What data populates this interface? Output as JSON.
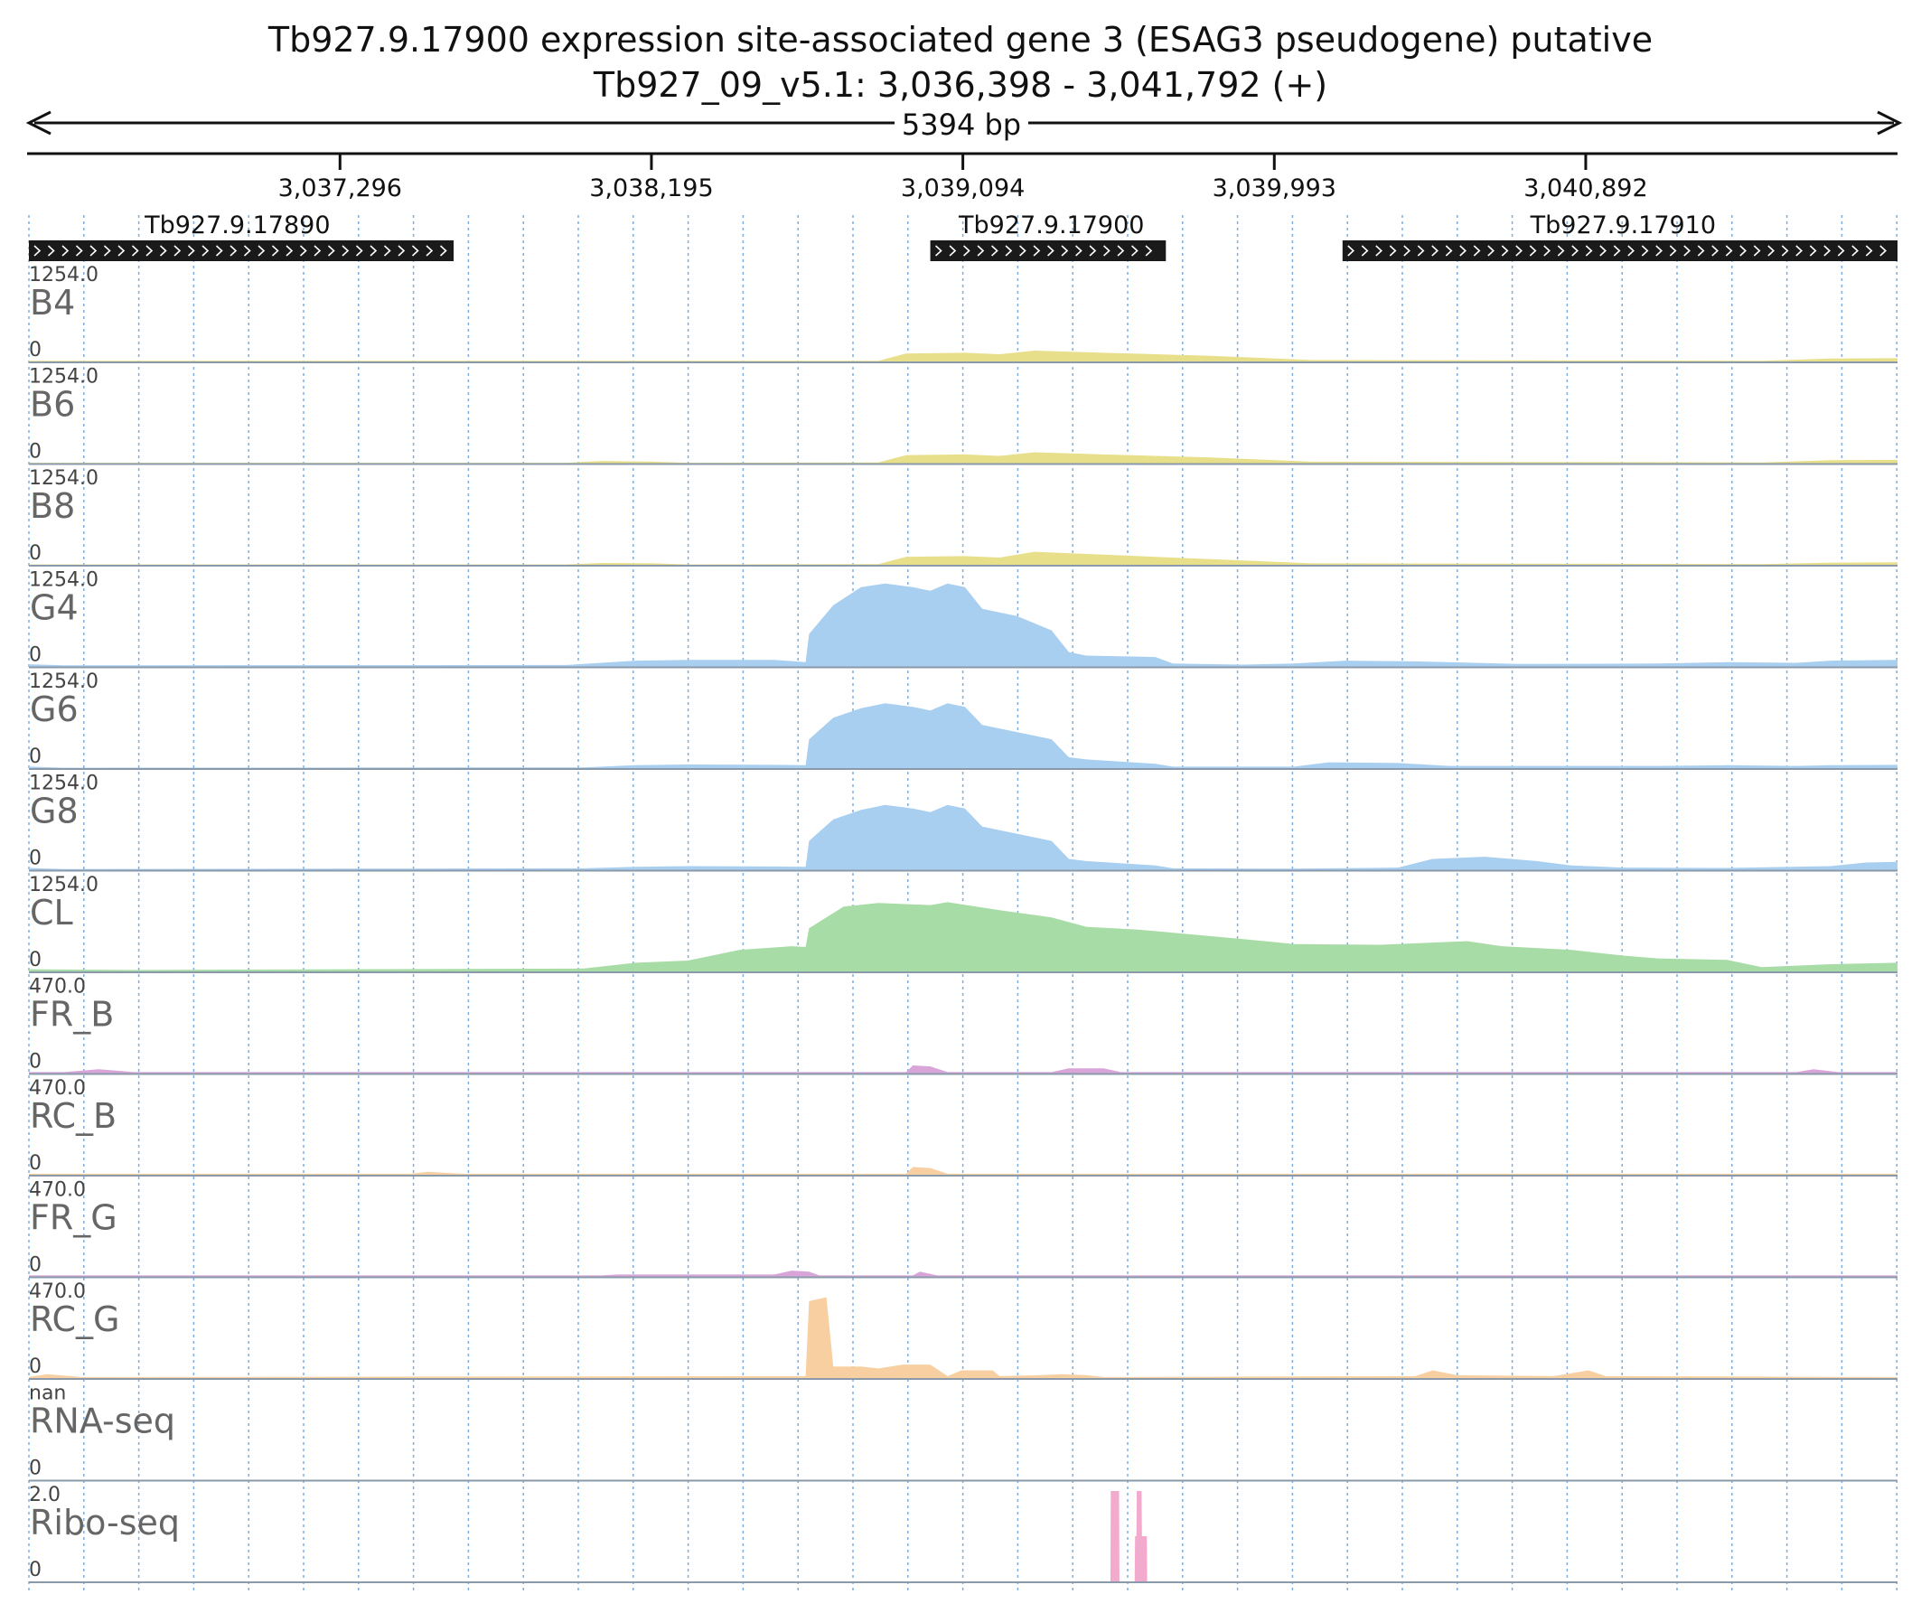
{
  "header": {
    "title": "Tb927.9.17900  expression site-associated gene 3 (ESAG3  pseudogene)  putative",
    "locus": "Tb927_09_v5.1: 3,036,398 - 3,041,792 (+)",
    "span_label": "5394 bp"
  },
  "chart_data": {
    "type": "area",
    "region": {
      "start": 3036398,
      "end": 3041792
    },
    "ticks": [
      {
        "pos": 3037296,
        "label": "3,037,296"
      },
      {
        "pos": 3038195,
        "label": "3,038,195"
      },
      {
        "pos": 3039094,
        "label": "3,039,094"
      },
      {
        "pos": 3039993,
        "label": "3,039,993"
      },
      {
        "pos": 3040892,
        "label": "3,040,892"
      }
    ],
    "genes": [
      {
        "name": "Tb927.9.17890",
        "start": 3036398,
        "end": 3037624,
        "strand": "+",
        "label_pos": 3037000
      },
      {
        "name": "Tb927.9.17900",
        "start": 3039000,
        "end": 3039680,
        "strand": "+",
        "label_pos": 3039350
      },
      {
        "name": "Tb927.9.17910",
        "start": 3040190,
        "end": 3041792,
        "strand": "+",
        "label_pos": 3041000
      }
    ],
    "tracks": [
      {
        "name": "B4",
        "max_label": "1254.0",
        "min_label": "0",
        "ymax": 1254,
        "color": "#e8df8a",
        "points": [
          [
            3036398,
            10
          ],
          [
            3038850,
            10
          ],
          [
            3038930,
            110
          ],
          [
            3039100,
            120
          ],
          [
            3039200,
            100
          ],
          [
            3039300,
            150
          ],
          [
            3039500,
            120
          ],
          [
            3039800,
            80
          ],
          [
            3040100,
            20
          ],
          [
            3041400,
            10
          ],
          [
            3041600,
            40
          ],
          [
            3041792,
            45
          ]
        ]
      },
      {
        "name": "B6",
        "max_label": "1254.0",
        "min_label": "0",
        "ymax": 1254,
        "color": "#e8df8a",
        "points": [
          [
            3036398,
            5
          ],
          [
            3037950,
            5
          ],
          [
            3038050,
            30
          ],
          [
            3038200,
            20
          ],
          [
            3038300,
            5
          ],
          [
            3038850,
            10
          ],
          [
            3038930,
            110
          ],
          [
            3039100,
            120
          ],
          [
            3039200,
            100
          ],
          [
            3039300,
            150
          ],
          [
            3039500,
            120
          ],
          [
            3039800,
            80
          ],
          [
            3040100,
            20
          ],
          [
            3041400,
            10
          ],
          [
            3041600,
            40
          ],
          [
            3041792,
            45
          ]
        ]
      },
      {
        "name": "B8",
        "max_label": "1254.0",
        "min_label": "0",
        "ymax": 1254,
        "color": "#e8df8a",
        "points": [
          [
            3036398,
            5
          ],
          [
            3037950,
            5
          ],
          [
            3038050,
            25
          ],
          [
            3038200,
            20
          ],
          [
            3038300,
            5
          ],
          [
            3038850,
            10
          ],
          [
            3038930,
            110
          ],
          [
            3039100,
            120
          ],
          [
            3039200,
            100
          ],
          [
            3039300,
            180
          ],
          [
            3039500,
            140
          ],
          [
            3039800,
            80
          ],
          [
            3040100,
            20
          ],
          [
            3041400,
            10
          ],
          [
            3041600,
            30
          ],
          [
            3041792,
            35
          ]
        ]
      },
      {
        "name": "G4",
        "max_label": "1254.0",
        "min_label": "0",
        "ymax": 1254,
        "color": "#a9cff0",
        "points": [
          [
            3036398,
            30
          ],
          [
            3036500,
            15
          ],
          [
            3037950,
            20
          ],
          [
            3038150,
            80
          ],
          [
            3038300,
            90
          ],
          [
            3038550,
            90
          ],
          [
            3038640,
            60
          ],
          [
            3038650,
            450
          ],
          [
            3038720,
            850
          ],
          [
            3038800,
            1100
          ],
          [
            3038870,
            1150
          ],
          [
            3038950,
            1100
          ],
          [
            3039000,
            1050
          ],
          [
            3039050,
            1150
          ],
          [
            3039100,
            1100
          ],
          [
            3039150,
            800
          ],
          [
            3039250,
            700
          ],
          [
            3039350,
            500
          ],
          [
            3039400,
            200
          ],
          [
            3039450,
            150
          ],
          [
            3039650,
            130
          ],
          [
            3039700,
            40
          ],
          [
            3039900,
            25
          ],
          [
            3040050,
            40
          ],
          [
            3040200,
            80
          ],
          [
            3040400,
            70
          ],
          [
            3040700,
            35
          ],
          [
            3041100,
            40
          ],
          [
            3041300,
            60
          ],
          [
            3041500,
            50
          ],
          [
            3041600,
            80
          ],
          [
            3041792,
            90
          ]
        ]
      },
      {
        "name": "G6",
        "max_label": "1254.0",
        "min_label": "0",
        "ymax": 1254,
        "color": "#a9cff0",
        "points": [
          [
            3036398,
            20
          ],
          [
            3036500,
            5
          ],
          [
            3038000,
            10
          ],
          [
            3038150,
            40
          ],
          [
            3038300,
            50
          ],
          [
            3038550,
            45
          ],
          [
            3038640,
            40
          ],
          [
            3038650,
            400
          ],
          [
            3038720,
            700
          ],
          [
            3038800,
            830
          ],
          [
            3038870,
            900
          ],
          [
            3038950,
            850
          ],
          [
            3039000,
            800
          ],
          [
            3039050,
            900
          ],
          [
            3039100,
            850
          ],
          [
            3039150,
            600
          ],
          [
            3039250,
            500
          ],
          [
            3039350,
            400
          ],
          [
            3039400,
            150
          ],
          [
            3039450,
            120
          ],
          [
            3039650,
            60
          ],
          [
            3039700,
            20
          ],
          [
            3040050,
            20
          ],
          [
            3040150,
            80
          ],
          [
            3040350,
            70
          ],
          [
            3040500,
            30
          ],
          [
            3041100,
            30
          ],
          [
            3041300,
            40
          ],
          [
            3041500,
            30
          ],
          [
            3041600,
            40
          ],
          [
            3041792,
            45
          ]
        ]
      },
      {
        "name": "G8",
        "max_label": "1254.0",
        "min_label": "0",
        "ymax": 1254,
        "color": "#a9cff0",
        "points": [
          [
            3036398,
            25
          ],
          [
            3036500,
            10
          ],
          [
            3038000,
            20
          ],
          [
            3038150,
            40
          ],
          [
            3038300,
            50
          ],
          [
            3038550,
            45
          ],
          [
            3038640,
            40
          ],
          [
            3038650,
            400
          ],
          [
            3038720,
            700
          ],
          [
            3038800,
            830
          ],
          [
            3038870,
            900
          ],
          [
            3038950,
            850
          ],
          [
            3039000,
            800
          ],
          [
            3039050,
            900
          ],
          [
            3039100,
            850
          ],
          [
            3039150,
            600
          ],
          [
            3039250,
            500
          ],
          [
            3039350,
            400
          ],
          [
            3039400,
            150
          ],
          [
            3039450,
            120
          ],
          [
            3039650,
            60
          ],
          [
            3039700,
            20
          ],
          [
            3040050,
            15
          ],
          [
            3040350,
            30
          ],
          [
            3040450,
            150
          ],
          [
            3040600,
            180
          ],
          [
            3040750,
            120
          ],
          [
            3040850,
            60
          ],
          [
            3041000,
            30
          ],
          [
            3041300,
            25
          ],
          [
            3041600,
            50
          ],
          [
            3041700,
            100
          ],
          [
            3041792,
            110
          ]
        ]
      },
      {
        "name": "CL",
        "max_label": "1254.0",
        "min_label": "0",
        "ymax": 1254,
        "color": "#a8dca6",
        "points": [
          [
            3036398,
            30
          ],
          [
            3036700,
            20
          ],
          [
            3038000,
            40
          ],
          [
            3038150,
            120
          ],
          [
            3038300,
            150
          ],
          [
            3038450,
            300
          ],
          [
            3038600,
            350
          ],
          [
            3038640,
            340
          ],
          [
            3038650,
            600
          ],
          [
            3038750,
            900
          ],
          [
            3038850,
            950
          ],
          [
            3039000,
            920
          ],
          [
            3039050,
            960
          ],
          [
            3039200,
            850
          ],
          [
            3039350,
            750
          ],
          [
            3039450,
            620
          ],
          [
            3039600,
            580
          ],
          [
            3039900,
            450
          ],
          [
            3040050,
            380
          ],
          [
            3040300,
            370
          ],
          [
            3040550,
            420
          ],
          [
            3040650,
            350
          ],
          [
            3040850,
            300
          ],
          [
            3041000,
            220
          ],
          [
            3041100,
            180
          ],
          [
            3041300,
            160
          ],
          [
            3041400,
            60
          ],
          [
            3041600,
            100
          ],
          [
            3041792,
            120
          ]
        ]
      },
      {
        "name": "FR_B",
        "max_label": "470.0",
        "min_label": "0",
        "ymax": 470,
        "color": "#d9a5d9",
        "points": [
          [
            3036398,
            5
          ],
          [
            3036500,
            5
          ],
          [
            3036600,
            20
          ],
          [
            3036700,
            5
          ],
          [
            3038930,
            5
          ],
          [
            3038950,
            40
          ],
          [
            3039000,
            35
          ],
          [
            3039050,
            5
          ],
          [
            3039350,
            5
          ],
          [
            3039400,
            25
          ],
          [
            3039500,
            25
          ],
          [
            3039550,
            5
          ],
          [
            3041500,
            5
          ],
          [
            3041550,
            20
          ],
          [
            3041620,
            5
          ],
          [
            3041792,
            5
          ]
        ]
      },
      {
        "name": "RC_B",
        "max_label": "470.0",
        "min_label": "0",
        "ymax": 470,
        "color": "#f7cfa0",
        "points": [
          [
            3036398,
            5
          ],
          [
            3037500,
            5
          ],
          [
            3037550,
            15
          ],
          [
            3037650,
            5
          ],
          [
            3038930,
            5
          ],
          [
            3038950,
            40
          ],
          [
            3039000,
            35
          ],
          [
            3039050,
            5
          ],
          [
            3041792,
            5
          ]
        ]
      },
      {
        "name": "FR_G",
        "max_label": "470.0",
        "min_label": "0",
        "ymax": 470,
        "color": "#d9a5d9",
        "points": [
          [
            3036398,
            5
          ],
          [
            3038050,
            5
          ],
          [
            3038100,
            10
          ],
          [
            3038550,
            10
          ],
          [
            3038600,
            30
          ],
          [
            3038650,
            25
          ],
          [
            3038680,
            5
          ],
          [
            3038950,
            5
          ],
          [
            3038970,
            25
          ],
          [
            3039020,
            5
          ],
          [
            3041792,
            5
          ]
        ]
      },
      {
        "name": "RC_G",
        "max_label": "470.0",
        "min_label": "0",
        "ymax": 470,
        "color": "#f7cfa0",
        "points": [
          [
            3036398,
            5
          ],
          [
            3036450,
            20
          ],
          [
            3036550,
            5
          ],
          [
            3038640,
            10
          ],
          [
            3038650,
            400
          ],
          [
            3038700,
            420
          ],
          [
            3038720,
            60
          ],
          [
            3038800,
            60
          ],
          [
            3038850,
            50
          ],
          [
            3038920,
            70
          ],
          [
            3039000,
            70
          ],
          [
            3039050,
            10
          ],
          [
            3039090,
            40
          ],
          [
            3039180,
            40
          ],
          [
            3039200,
            10
          ],
          [
            3039320,
            15
          ],
          [
            3039380,
            20
          ],
          [
            3039450,
            15
          ],
          [
            3039500,
            5
          ],
          [
            3040400,
            10
          ],
          [
            3040450,
            40
          ],
          [
            3040520,
            15
          ],
          [
            3040800,
            10
          ],
          [
            3040900,
            40
          ],
          [
            3040950,
            10
          ],
          [
            3041792,
            5
          ]
        ]
      },
      {
        "name": "RNA-seq",
        "max_label": "nan",
        "min_label": "0",
        "ymax": 1,
        "color": "#9ab8d6",
        "points": [
          [
            3036398,
            0
          ],
          [
            3041792,
            0
          ]
        ]
      },
      {
        "name": "Ribo-seq",
        "max_label": "2.0",
        "min_label": "0",
        "ymax": 2,
        "color": "#f2aacd",
        "points": [
          [
            3036398,
            0
          ],
          [
            3039520,
            0
          ],
          [
            3039521,
            2
          ],
          [
            3039545,
            2
          ],
          [
            3039546,
            0
          ],
          [
            3039590,
            0
          ],
          [
            3039591,
            1
          ],
          [
            3039595,
            1
          ],
          [
            3039596,
            2
          ],
          [
            3039610,
            2
          ],
          [
            3039611,
            1
          ],
          [
            3039625,
            1
          ],
          [
            3039626,
            0
          ],
          [
            3041792,
            0
          ]
        ]
      }
    ],
    "grid": true,
    "xlabel": "",
    "ylabel": ""
  }
}
